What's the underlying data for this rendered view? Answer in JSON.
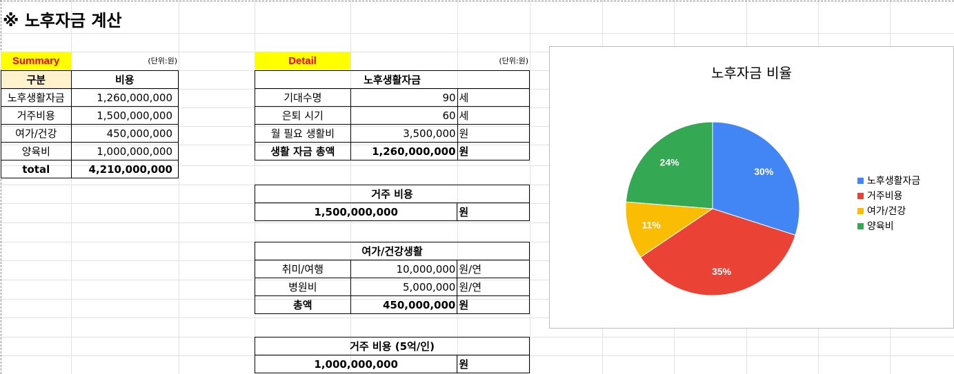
{
  "title": "※ 노후자금 계산",
  "summary": {
    "label": "Summary",
    "unit": "(단위:원)",
    "header": [
      "구분",
      "비용"
    ],
    "rows": [
      [
        "노후생활자금",
        "1,260,000,000"
      ],
      [
        "거주비용",
        "1,500,000,000"
      ],
      [
        "여가/건강",
        "450,000,000"
      ],
      [
        "양육비",
        "1,000,000,000"
      ]
    ],
    "total_label": "total",
    "total_value": "4,210,000,000"
  },
  "detail": {
    "label": "Detail",
    "unit": "(단위:원)",
    "living": {
      "header": "노후생활자금",
      "rows": [
        [
          "기대수명",
          "90",
          "세"
        ],
        [
          "은퇴 시기",
          "60",
          "세"
        ],
        [
          "월 필요 생활비",
          "3,500,000",
          "원"
        ]
      ],
      "total": [
        "생활 자금 총액",
        "1,260,000,000",
        "원"
      ]
    },
    "housing": {
      "header": "거주 비용",
      "value": "1,500,000,000",
      "unit": "원"
    },
    "leisure": {
      "header": "여가/건강생활",
      "rows": [
        [
          "취미/여행",
          "10,000,000",
          "원/연"
        ],
        [
          "병원비",
          "5,000,000",
          "원/연"
        ]
      ],
      "total": [
        "총액",
        "450,000,000",
        "원"
      ]
    },
    "childcare": {
      "header": "거주 비용 (5억/인)",
      "value": "1,000,000,000",
      "unit": "원"
    }
  },
  "chart_data": {
    "type": "pie",
    "title": "노후자금 비율",
    "categories": [
      "노후생활자금",
      "거주비용",
      "여가/건강",
      "양육비"
    ],
    "values": [
      1260000000,
      1500000000,
      450000000,
      1000000000
    ],
    "data_labels": [
      "30%",
      "35%",
      "11%",
      "24%"
    ],
    "colors": [
      "#4285f4",
      "#ea4335",
      "#fbbc04",
      "#34a853"
    ],
    "legend_position": "right"
  }
}
